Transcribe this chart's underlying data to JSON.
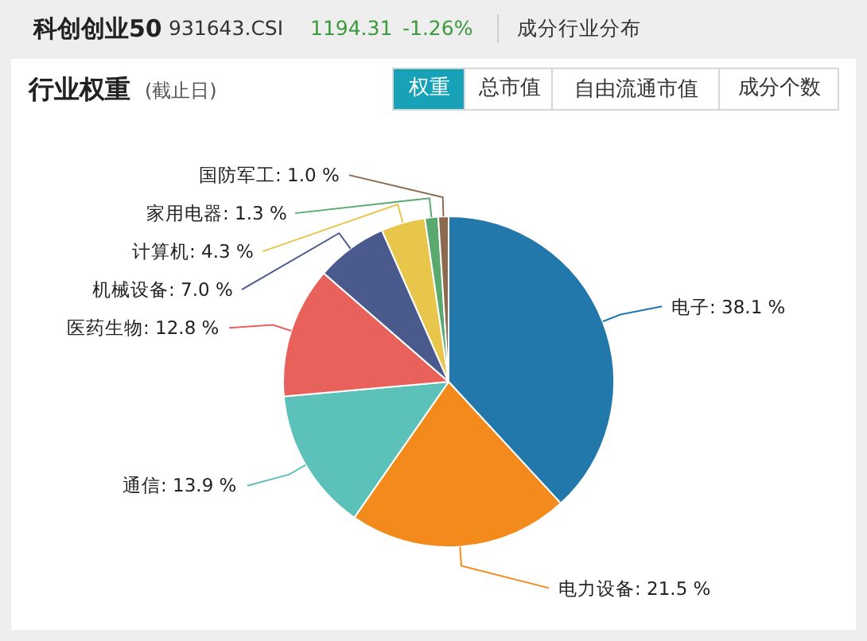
{
  "chart_data": {
    "type": "pie",
    "title": "行业权重",
    "subtitle": "(截止日)",
    "annotations": [
      "科创创业50",
      "931643.CSI",
      "1194.31",
      "-1.26%",
      "成分行业分布",
      "权重",
      "总市值",
      "自由流通市值",
      "成分个数"
    ],
    "categories": [
      "电子",
      "电力设备",
      "通信",
      "医药生物",
      "机械设备",
      "计算机",
      "家用电器",
      "国防军工"
    ],
    "values": [
      38.1,
      21.5,
      13.9,
      12.8,
      7.0,
      4.3,
      1.3,
      1.0
    ],
    "value_labels": [
      "38.1 %",
      "21.5 %",
      "13.9 %",
      "12.8 %",
      "7.0 %",
      "4.3 %",
      "1.3 %",
      "1.0 %"
    ],
    "colors": [
      "#2277ab",
      "#f38b1c",
      "#5cc1b8",
      "#e8615b",
      "#4b5a8d",
      "#e8c64c",
      "#5aa96f",
      "#8b6a4f"
    ]
  }
}
